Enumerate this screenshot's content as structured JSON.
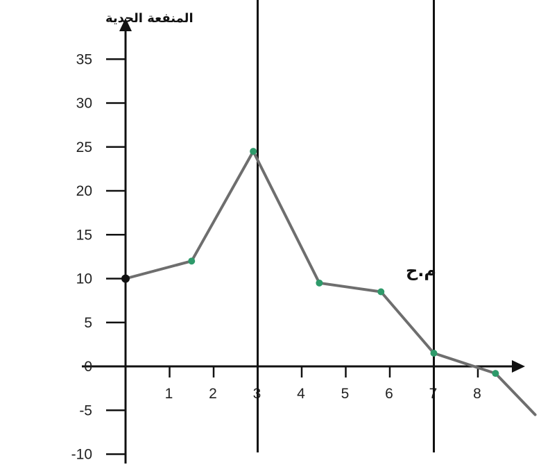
{
  "chart_data": {
    "type": "line",
    "title": "",
    "xlabel": "",
    "ylabel": "المنفعة الحدية",
    "annotation": "م.ح",
    "xlim": [
      0,
      9.3
    ],
    "ylim": [
      -10,
      38
    ],
    "x_ticks": [
      1,
      2,
      3,
      4,
      5,
      6,
      7,
      8
    ],
    "y_ticks": [
      35,
      30,
      25,
      20,
      15,
      10,
      5,
      0,
      -5,
      -10
    ],
    "vertical_lines": [
      3,
      7
    ],
    "series": [
      {
        "points": [
          {
            "x": 0,
            "y": 10
          },
          {
            "x": 1.5,
            "y": 12
          },
          {
            "x": 2.9,
            "y": 24.5
          },
          {
            "x": 4.4,
            "y": 9.5
          },
          {
            "x": 5.8,
            "y": 8.5
          },
          {
            "x": 7,
            "y": 1.5
          },
          {
            "x": 8.4,
            "y": -0.8
          },
          {
            "x": 9.3,
            "y": -5.5
          }
        ]
      }
    ],
    "colors": {
      "line": "#6e6e6e",
      "marker": "#2e9a6a",
      "origin_marker": "#111111",
      "axis": "#111111"
    }
  }
}
